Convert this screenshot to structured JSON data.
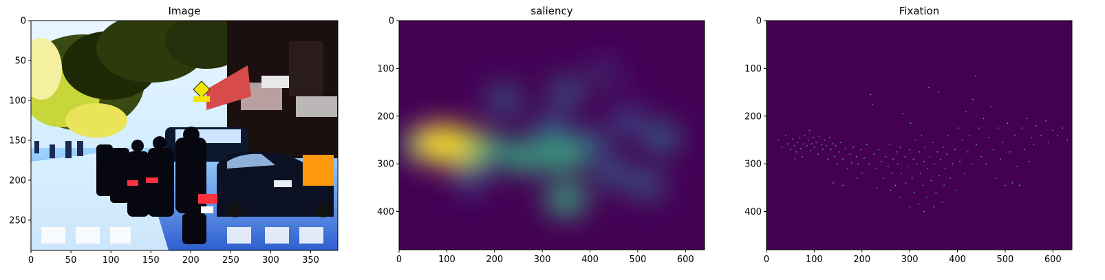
{
  "chart_data": [
    {
      "type": "image",
      "title": "Image",
      "xlim": [
        0,
        384
      ],
      "ylim": [
        288,
        0
      ],
      "xticks": [
        0,
        50,
        100,
        150,
        200,
        250,
        300,
        350
      ],
      "yticks": [
        0,
        50,
        100,
        150,
        200,
        250
      ],
      "content": "street photo: motorcycles and parked cars under trees"
    },
    {
      "type": "heatmap",
      "title": "saliency",
      "colormap": "viridis",
      "background_color": "#440154",
      "xlim": [
        0,
        640
      ],
      "ylim": [
        480,
        0
      ],
      "xticks": [
        0,
        100,
        200,
        300,
        400,
        500,
        600
      ],
      "yticks": [
        0,
        100,
        200,
        300,
        400
      ],
      "blobs": [
        {
          "x": 90,
          "y": 258,
          "intensity": 1.0
        },
        {
          "x": 130,
          "y": 265,
          "intensity": 0.85
        },
        {
          "x": 50,
          "y": 260,
          "intensity": 0.6
        },
        {
          "x": 190,
          "y": 272,
          "intensity": 0.55
        },
        {
          "x": 265,
          "y": 285,
          "intensity": 0.6
        },
        {
          "x": 345,
          "y": 285,
          "intensity": 0.6
        },
        {
          "x": 350,
          "y": 375,
          "intensity": 0.6
        },
        {
          "x": 320,
          "y": 230,
          "intensity": 0.35
        },
        {
          "x": 400,
          "y": 260,
          "intensity": 0.35
        },
        {
          "x": 220,
          "y": 165,
          "intensity": 0.3
        },
        {
          "x": 350,
          "y": 150,
          "intensity": 0.3
        },
        {
          "x": 450,
          "y": 320,
          "intensity": 0.3
        },
        {
          "x": 520,
          "y": 345,
          "intensity": 0.3
        },
        {
          "x": 550,
          "y": 245,
          "intensity": 0.35
        },
        {
          "x": 480,
          "y": 210,
          "intensity": 0.25
        },
        {
          "x": 430,
          "y": 110,
          "intensity": 0.15
        },
        {
          "x": 150,
          "y": 330,
          "intensity": 0.25
        }
      ]
    },
    {
      "type": "scatter",
      "title": "Fixation",
      "background_color": "#440154",
      "point_color": "#5ec9c0",
      "xlim": [
        0,
        640
      ],
      "ylim": [
        480,
        0
      ],
      "xticks": [
        0,
        100,
        200,
        300,
        400,
        500,
        600
      ],
      "yticks": [
        0,
        100,
        200,
        300,
        400
      ],
      "points": [
        [
          25,
          250
        ],
        [
          32,
          265
        ],
        [
          40,
          240
        ],
        [
          45,
          258
        ],
        [
          50,
          270
        ],
        [
          55,
          248
        ],
        [
          58,
          262
        ],
        [
          62,
          275
        ],
        [
          65,
          255
        ],
        [
          70,
          245
        ],
        [
          72,
          268
        ],
        [
          78,
          258
        ],
        [
          80,
          240
        ],
        [
          85,
          262
        ],
        [
          88,
          250
        ],
        [
          92,
          272
        ],
        [
          95,
          258
        ],
        [
          98,
          245
        ],
        [
          100,
          265
        ],
        [
          104,
          255
        ],
        [
          108,
          280
        ],
        [
          110,
          242
        ],
        [
          115,
          260
        ],
        [
          118,
          270
        ],
        [
          122,
          250
        ],
        [
          125,
          262
        ],
        [
          128,
          290
        ],
        [
          132,
          245
        ],
        [
          135,
          270
        ],
        [
          138,
          258
        ],
        [
          142,
          285
        ],
        [
          145,
          262
        ],
        [
          148,
          300
        ],
        [
          152,
          275
        ],
        [
          155,
          255
        ],
        [
          160,
          290
        ],
        [
          165,
          268
        ],
        [
          170,
          310
        ],
        [
          175,
          280
        ],
        [
          178,
          298
        ],
        [
          182,
          265
        ],
        [
          188,
          285
        ],
        [
          192,
          300
        ],
        [
          198,
          270
        ],
        [
          200,
          320
        ],
        [
          205,
          288
        ],
        [
          210,
          260
        ],
        [
          215,
          300
        ],
        [
          218,
          155
        ],
        [
          222,
          175
        ],
        [
          225,
          280
        ],
        [
          230,
          310
        ],
        [
          235,
          270
        ],
        [
          240,
          295
        ],
        [
          245,
          330
        ],
        [
          250,
          285
        ],
        [
          255,
          305
        ],
        [
          258,
          260
        ],
        [
          262,
          320
        ],
        [
          265,
          290
        ],
        [
          270,
          345
        ],
        [
          272,
          275
        ],
        [
          275,
          300
        ],
        [
          280,
          265
        ],
        [
          282,
          320
        ],
        [
          285,
          195
        ],
        [
          290,
          285
        ],
        [
          292,
          340
        ],
        [
          295,
          305
        ],
        [
          300,
          270
        ],
        [
          302,
          215
        ],
        [
          305,
          330
        ],
        [
          308,
          290
        ],
        [
          310,
          360
        ],
        [
          312,
          250
        ],
        [
          315,
          300
        ],
        [
          318,
          385
        ],
        [
          320,
          275
        ],
        [
          322,
          320
        ],
        [
          325,
          240
        ],
        [
          328,
          345
        ],
        [
          330,
          295
        ],
        [
          332,
          265
        ],
        [
          335,
          370
        ],
        [
          338,
          310
        ],
        [
          340,
          140
        ],
        [
          342,
          285
        ],
        [
          345,
          335
        ],
        [
          348,
          255
        ],
        [
          350,
          390
        ],
        [
          352,
          300
        ],
        [
          355,
          360
        ],
        [
          358,
          275
        ],
        [
          360,
          150
        ],
        [
          362,
          325
        ],
        [
          365,
          290
        ],
        [
          368,
          380
        ],
        [
          370,
          265
        ],
        [
          372,
          345
        ],
        [
          375,
          310
        ],
        [
          378,
          280
        ],
        [
          380,
          240
        ],
        [
          385,
          330
        ],
        [
          390,
          300
        ],
        [
          395,
          270
        ],
        [
          398,
          355
        ],
        [
          402,
          225
        ],
        [
          405,
          295
        ],
        [
          410,
          250
        ],
        [
          415,
          320
        ],
        [
          418,
          190
        ],
        [
          422,
          275
        ],
        [
          425,
          240
        ],
        [
          430,
          300
        ],
        [
          432,
          165
        ],
        [
          438,
          115
        ],
        [
          440,
          260
        ],
        [
          445,
          225
        ],
        [
          450,
          285
        ],
        [
          455,
          205
        ],
        [
          460,
          300
        ],
        [
          465,
          245
        ],
        [
          470,
          180
        ],
        [
          475,
          270
        ],
        [
          480,
          330
        ],
        [
          485,
          225
        ],
        [
          490,
          290
        ],
        [
          495,
          255
        ],
        [
          500,
          345
        ],
        [
          505,
          215
        ],
        [
          510,
          275
        ],
        [
          515,
          340
        ],
        [
          520,
          240
        ],
        [
          525,
          305
        ],
        [
          530,
          345
        ],
        [
          535,
          225
        ],
        [
          540,
          270
        ],
        [
          545,
          205
        ],
        [
          550,
          295
        ],
        [
          555,
          245
        ],
        [
          560,
          260
        ],
        [
          565,
          220
        ],
        [
          575,
          240
        ],
        [
          585,
          210
        ],
        [
          590,
          255
        ],
        [
          600,
          230
        ],
        [
          610,
          240
        ],
        [
          620,
          225
        ],
        [
          630,
          250
        ],
        [
          60,
          290
        ],
        [
          75,
          285
        ],
        [
          90,
          230
        ],
        [
          140,
          340
        ],
        [
          160,
          345
        ],
        [
          190,
          330
        ],
        [
          230,
          350
        ],
        [
          260,
          355
        ],
        [
          280,
          370
        ],
        [
          300,
          390
        ],
        [
          330,
          400
        ]
      ]
    }
  ]
}
